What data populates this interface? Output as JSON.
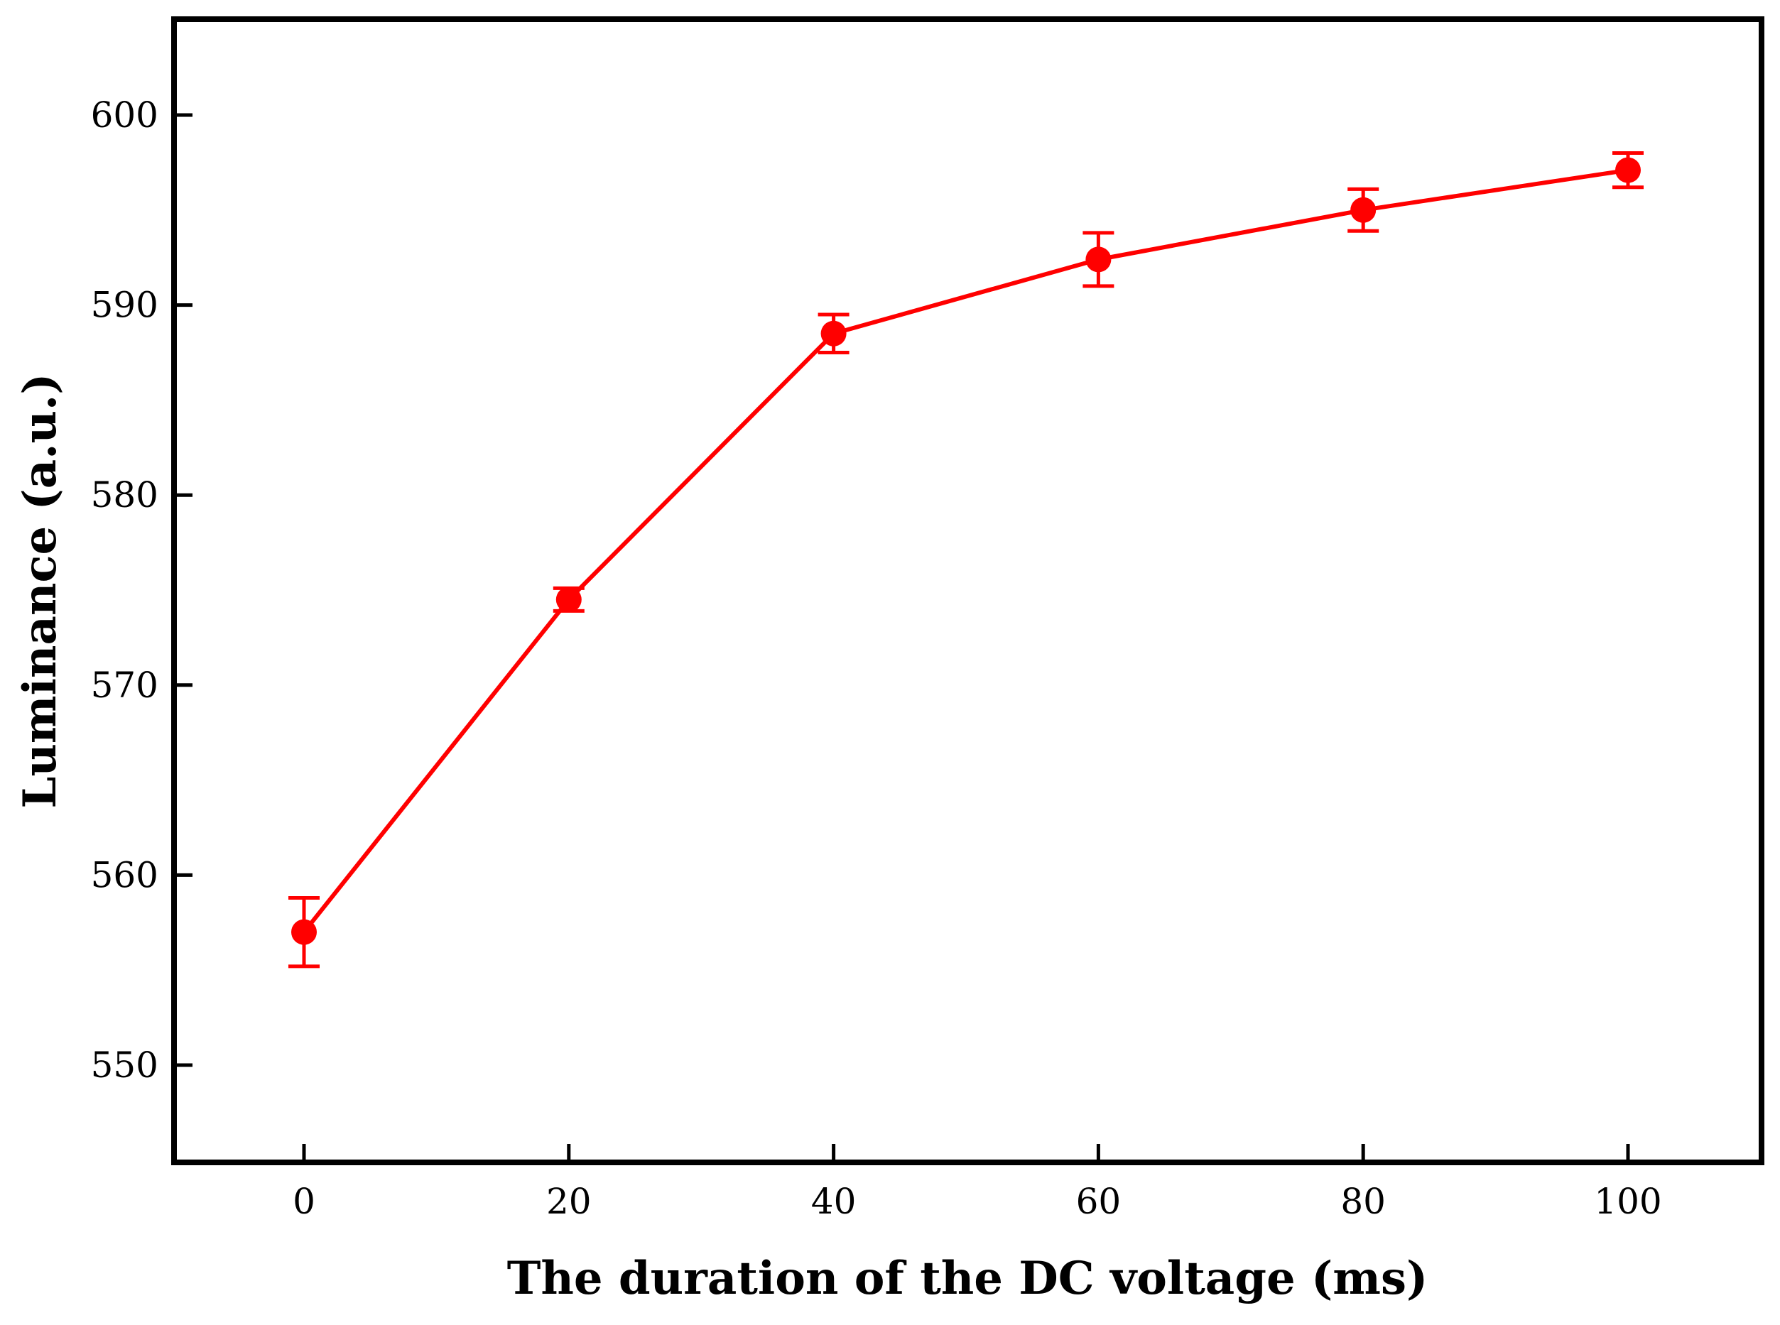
{
  "chart_data": {
    "type": "line",
    "title": "",
    "xlabel": "The duration of the DC voltage (ms)",
    "ylabel": "Luminance (a.u.)",
    "xlim": [
      -10,
      110
    ],
    "ylim": [
      545,
      605
    ],
    "xticks": [
      0,
      20,
      40,
      60,
      80,
      100
    ],
    "yticks": [
      550,
      560,
      570,
      580,
      590,
      600
    ],
    "series": [
      {
        "name": "Luminance",
        "color": "#ff0000",
        "marker": "circle",
        "x": [
          0,
          20,
          40,
          60,
          80,
          100
        ],
        "y": [
          557.0,
          574.5,
          588.5,
          592.4,
          595.0,
          597.1
        ],
        "yerr": [
          1.8,
          0.6,
          1.0,
          1.4,
          1.1,
          0.9
        ]
      }
    ],
    "grid": false,
    "legend": "none"
  }
}
